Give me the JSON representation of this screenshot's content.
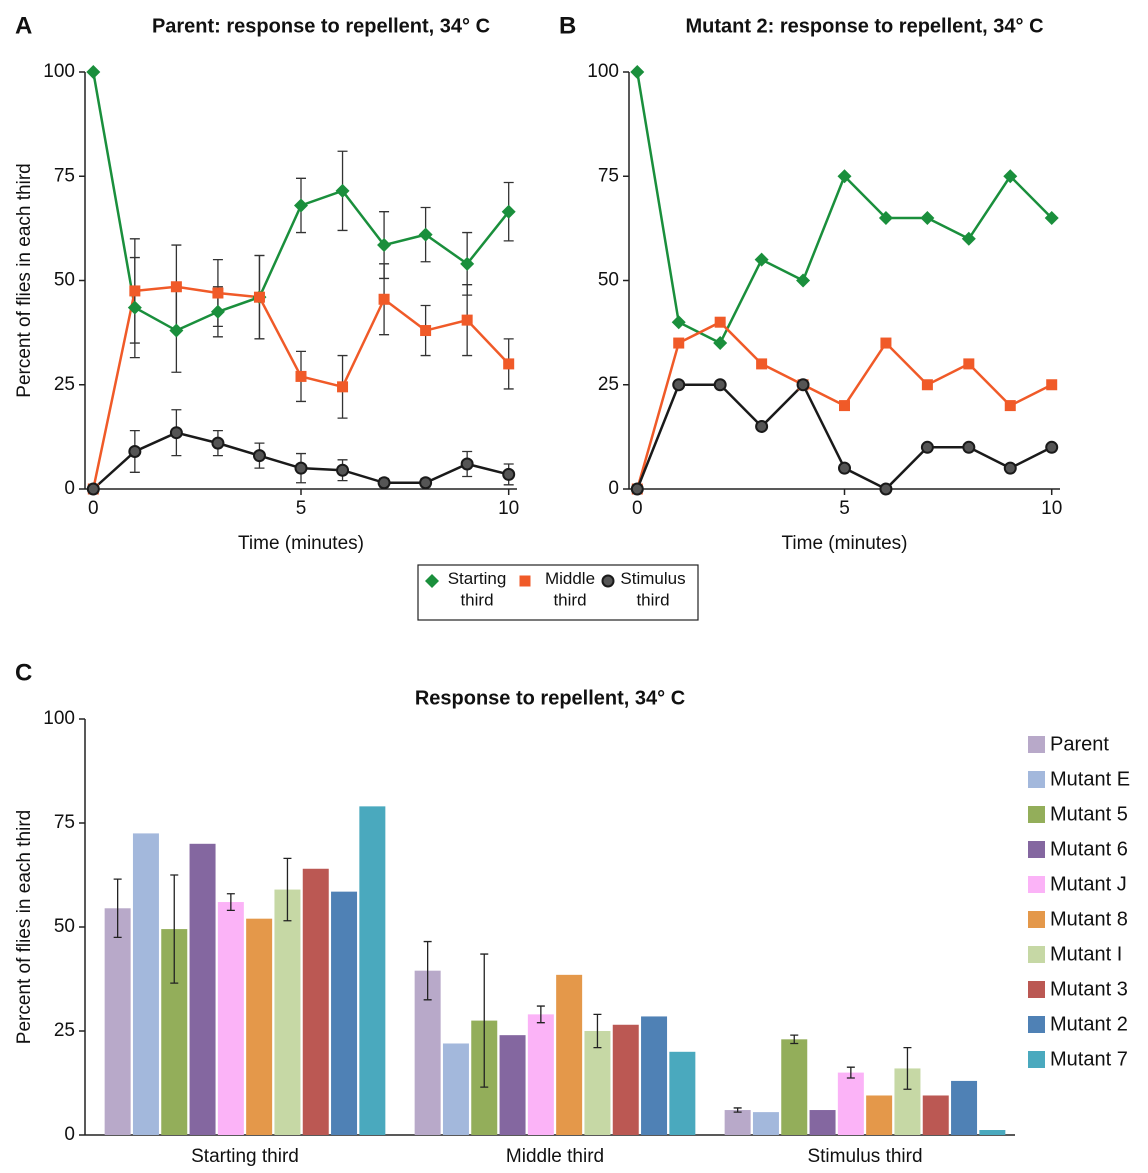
{
  "chart_data": [
    {
      "type": "line",
      "panel": "A",
      "title": "Parent: response to repellent, 34° C",
      "xlabel": "Time (minutes)",
      "ylabel": "Percent of flies in each third",
      "x": [
        0,
        1,
        2,
        3,
        4,
        5,
        6,
        7,
        8,
        9,
        10
      ],
      "xlim": [
        -0.2,
        10.2
      ],
      "xticks": [
        0,
        5,
        10
      ],
      "ylim": [
        0,
        100
      ],
      "yticks": [
        0,
        25,
        50,
        75,
        100
      ],
      "legend": "below",
      "series": [
        {
          "name": "Starting third",
          "color": "#1a8f3c",
          "marker": "diamond",
          "values": [
            100,
            43.5,
            38,
            42.5,
            46,
            68,
            71.5,
            58.5,
            61,
            54,
            66.5
          ],
          "errors": [
            null,
            12,
            10,
            6,
            10,
            6.5,
            9.5,
            8,
            6.5,
            7.5,
            7
          ]
        },
        {
          "name": "Middle third",
          "color": "#f05a28",
          "marker": "square",
          "values": [
            0,
            47.5,
            48.5,
            47,
            46,
            27,
            24.5,
            45.5,
            38,
            40.5,
            30
          ],
          "errors": [
            null,
            12.5,
            10,
            8,
            10,
            6,
            7.5,
            8.5,
            6,
            8.5,
            6
          ]
        },
        {
          "name": "Stimulus third",
          "color": "#1a1a1a",
          "marker": "circle",
          "values": [
            0,
            9,
            13.5,
            11,
            8,
            5,
            4.5,
            1.5,
            1.5,
            6,
            3.5
          ],
          "errors": [
            null,
            5,
            5.5,
            3,
            3,
            3.5,
            2.5,
            1,
            1,
            3,
            2.5
          ]
        }
      ]
    },
    {
      "type": "line",
      "panel": "B",
      "title": "Mutant 2: response to repellent, 34° C",
      "xlabel": "Time (minutes)",
      "x": [
        0,
        1,
        2,
        3,
        4,
        5,
        6,
        7,
        8,
        9,
        10
      ],
      "xlim": [
        -0.2,
        10.2
      ],
      "xticks": [
        0,
        5,
        10
      ],
      "ylim": [
        0,
        100
      ],
      "yticks": [
        0,
        25,
        50,
        75,
        100
      ],
      "series": [
        {
          "color": "#1a8f3c",
          "marker": "diamond",
          "values": [
            100,
            40,
            35,
            55,
            50,
            75,
            65,
            65,
            60,
            75,
            65
          ]
        },
        {
          "color": "#f05a28",
          "marker": "square",
          "values": [
            0,
            35,
            40,
            30,
            25,
            20,
            35,
            25,
            30,
            20,
            25
          ]
        },
        {
          "color": "#1a1a1a",
          "marker": "circle",
          "values": [
            0,
            25,
            25,
            15,
            25,
            5,
            0,
            10,
            10,
            5,
            10
          ]
        }
      ]
    },
    {
      "type": "bar",
      "panel": "C",
      "title": "Response to repellent, 34° C",
      "ylabel": "Percent of flies in each third",
      "categories": [
        "Starting third",
        "Middle third",
        "Stimulus third"
      ],
      "ylim": [
        0,
        100
      ],
      "yticks": [
        0,
        25,
        50,
        75,
        100
      ],
      "legend": "right",
      "series": [
        {
          "name": "Parent",
          "color": "#b8a9c9",
          "values": [
            54.5,
            39.5,
            6
          ],
          "errors": [
            7,
            7,
            0.5
          ]
        },
        {
          "name": "Mutant E",
          "color": "#a3b8dc",
          "values": [
            72.5,
            22,
            5.5
          ],
          "errors": [
            null,
            null,
            null
          ]
        },
        {
          "name": "Mutant 5",
          "color": "#93ae5a",
          "values": [
            49.5,
            27.5,
            23
          ],
          "errors": [
            13,
            16,
            1
          ]
        },
        {
          "name": "Mutant 6",
          "color": "#8467a0",
          "values": [
            70,
            24,
            6
          ],
          "errors": [
            null,
            null,
            null
          ]
        },
        {
          "name": "Mutant J",
          "color": "#fbb3f7",
          "values": [
            56,
            29,
            15
          ],
          "errors": [
            2,
            2,
            1.3
          ]
        },
        {
          "name": "Mutant 8",
          "color": "#e4984a",
          "values": [
            52,
            38.5,
            9.5
          ],
          "errors": [
            null,
            null,
            null
          ]
        },
        {
          "name": "Mutant I",
          "color": "#c6d8a5",
          "values": [
            59,
            25,
            16
          ],
          "errors": [
            7.5,
            4,
            5
          ]
        },
        {
          "name": "Mutant 3",
          "color": "#bb5853",
          "values": [
            64,
            26.5,
            9.5
          ],
          "errors": [
            null,
            null,
            null
          ]
        },
        {
          "name": "Mutant 2",
          "color": "#4f81b5",
          "values": [
            58.5,
            28.5,
            13
          ],
          "errors": [
            null,
            null,
            null
          ]
        },
        {
          "name": "Mutant 7",
          "color": "#4aa9be",
          "values": [
            79,
            20,
            1.2
          ],
          "errors": [
            null,
            null,
            null
          ]
        }
      ]
    }
  ]
}
